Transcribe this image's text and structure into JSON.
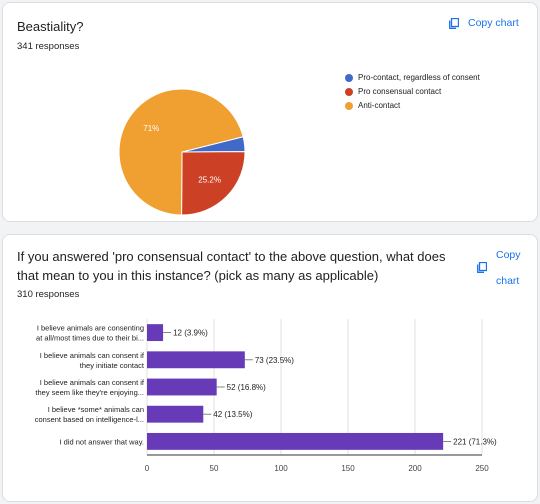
{
  "questions": [
    {
      "title": "Beastiality?",
      "responses": "341 responses",
      "copy_label": "Copy chart",
      "chart_data": {
        "type": "pie",
        "categories": [
          "Pro-contact, regardless of consent",
          "Pro consensual contact",
          "Anti-contact"
        ],
        "values": [
          3.8,
          25.2,
          71
        ],
        "labels": [
          "",
          "25.2%",
          "71%"
        ],
        "colors": [
          "#4169c7",
          "#cc4125",
          "#f0a030"
        ],
        "legend_position": "right"
      }
    },
    {
      "title": "If you answered 'pro consensual contact' to the above question, what does that mean to you in this instance? (pick as many as applicable)",
      "responses": "310 responses",
      "copy_label_line1": "Copy",
      "copy_label_line2": "chart",
      "chart_data": {
        "type": "bar",
        "orientation": "horizontal",
        "categories": [
          [
            "I believe animals are consenting",
            "at all/most times due to their bi..."
          ],
          [
            "I believe animals can consent if",
            "they initiate contact"
          ],
          [
            "I believe animals can consent if",
            "they seem like they're enjoying..."
          ],
          [
            "I believe *some* animals can",
            "consent based on intelligence-l..."
          ],
          [
            "I did not answer that way."
          ]
        ],
        "values": [
          12,
          73,
          52,
          42,
          221
        ],
        "labels": [
          "12 (3.9%)",
          "73 (23.5%)",
          "52 (16.8%)",
          "42 (13.5%)",
          "221 (71.3%)"
        ],
        "xlim": [
          0,
          250
        ],
        "xticks": [
          "0",
          "50",
          "100",
          "150",
          "200",
          "250"
        ],
        "color": "#673ab7",
        "grid": true
      }
    }
  ]
}
